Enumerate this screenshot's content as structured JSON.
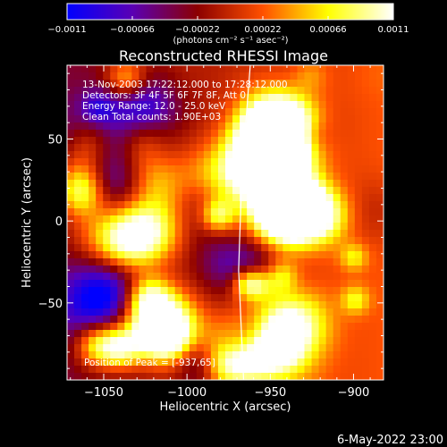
{
  "chart_data": {
    "type": "heatmap",
    "title": "Reconstructed RHESSI Image",
    "xlabel": "Heliocentric X (arcsec)",
    "ylabel": "Heliocentric Y (arcsec)",
    "xlim": [
      -1072,
      -882
    ],
    "ylim": [
      -97,
      95
    ],
    "x_ticks": [
      -1050,
      -1000,
      -950,
      -900
    ],
    "y_ticks": [
      50,
      0,
      -50
    ],
    "x_tick_labels": [
      "−1050",
      "−1000",
      "−950",
      "−900"
    ],
    "y_tick_labels": [
      "50",
      "0",
      "−50"
    ],
    "colorbar": {
      "ticks": [
        -0.0011,
        -0.00066,
        -0.00022,
        0.00022,
        0.00066,
        0.0011
      ],
      "tick_labels": [
        "−0.0011",
        "−0.00066",
        "−0.00022",
        "0.00022",
        "0.00066",
        "0.0011"
      ],
      "range": [
        -0.0011,
        0.0011
      ],
      "unit_label": "(photons cm⁻² s⁻¹ asec⁻²)",
      "colormap": [
        "#0000ff",
        "#5a00b4",
        "#8c0000",
        "#ff5000",
        "#ffff00",
        "#ffffff"
      ]
    },
    "annotations": [
      "13-Nov-2003 17:22:12.000 to 17:28:12.000",
      "Detectors: 3F 4F 5F 6F 7F 8F, Att 0",
      "Energy Range: 12.0 - 25.0 keV",
      "Clean     Total counts: 1.90E+03"
    ],
    "peak_label": "Position of Peak = [-937,65]",
    "limb_curve_x": [
      -962,
      -967,
      -969,
      -966
    ],
    "limb_curve_y": [
      95,
      30,
      -30,
      -97
    ]
  },
  "footer_date": "6-May-2022 23:00"
}
